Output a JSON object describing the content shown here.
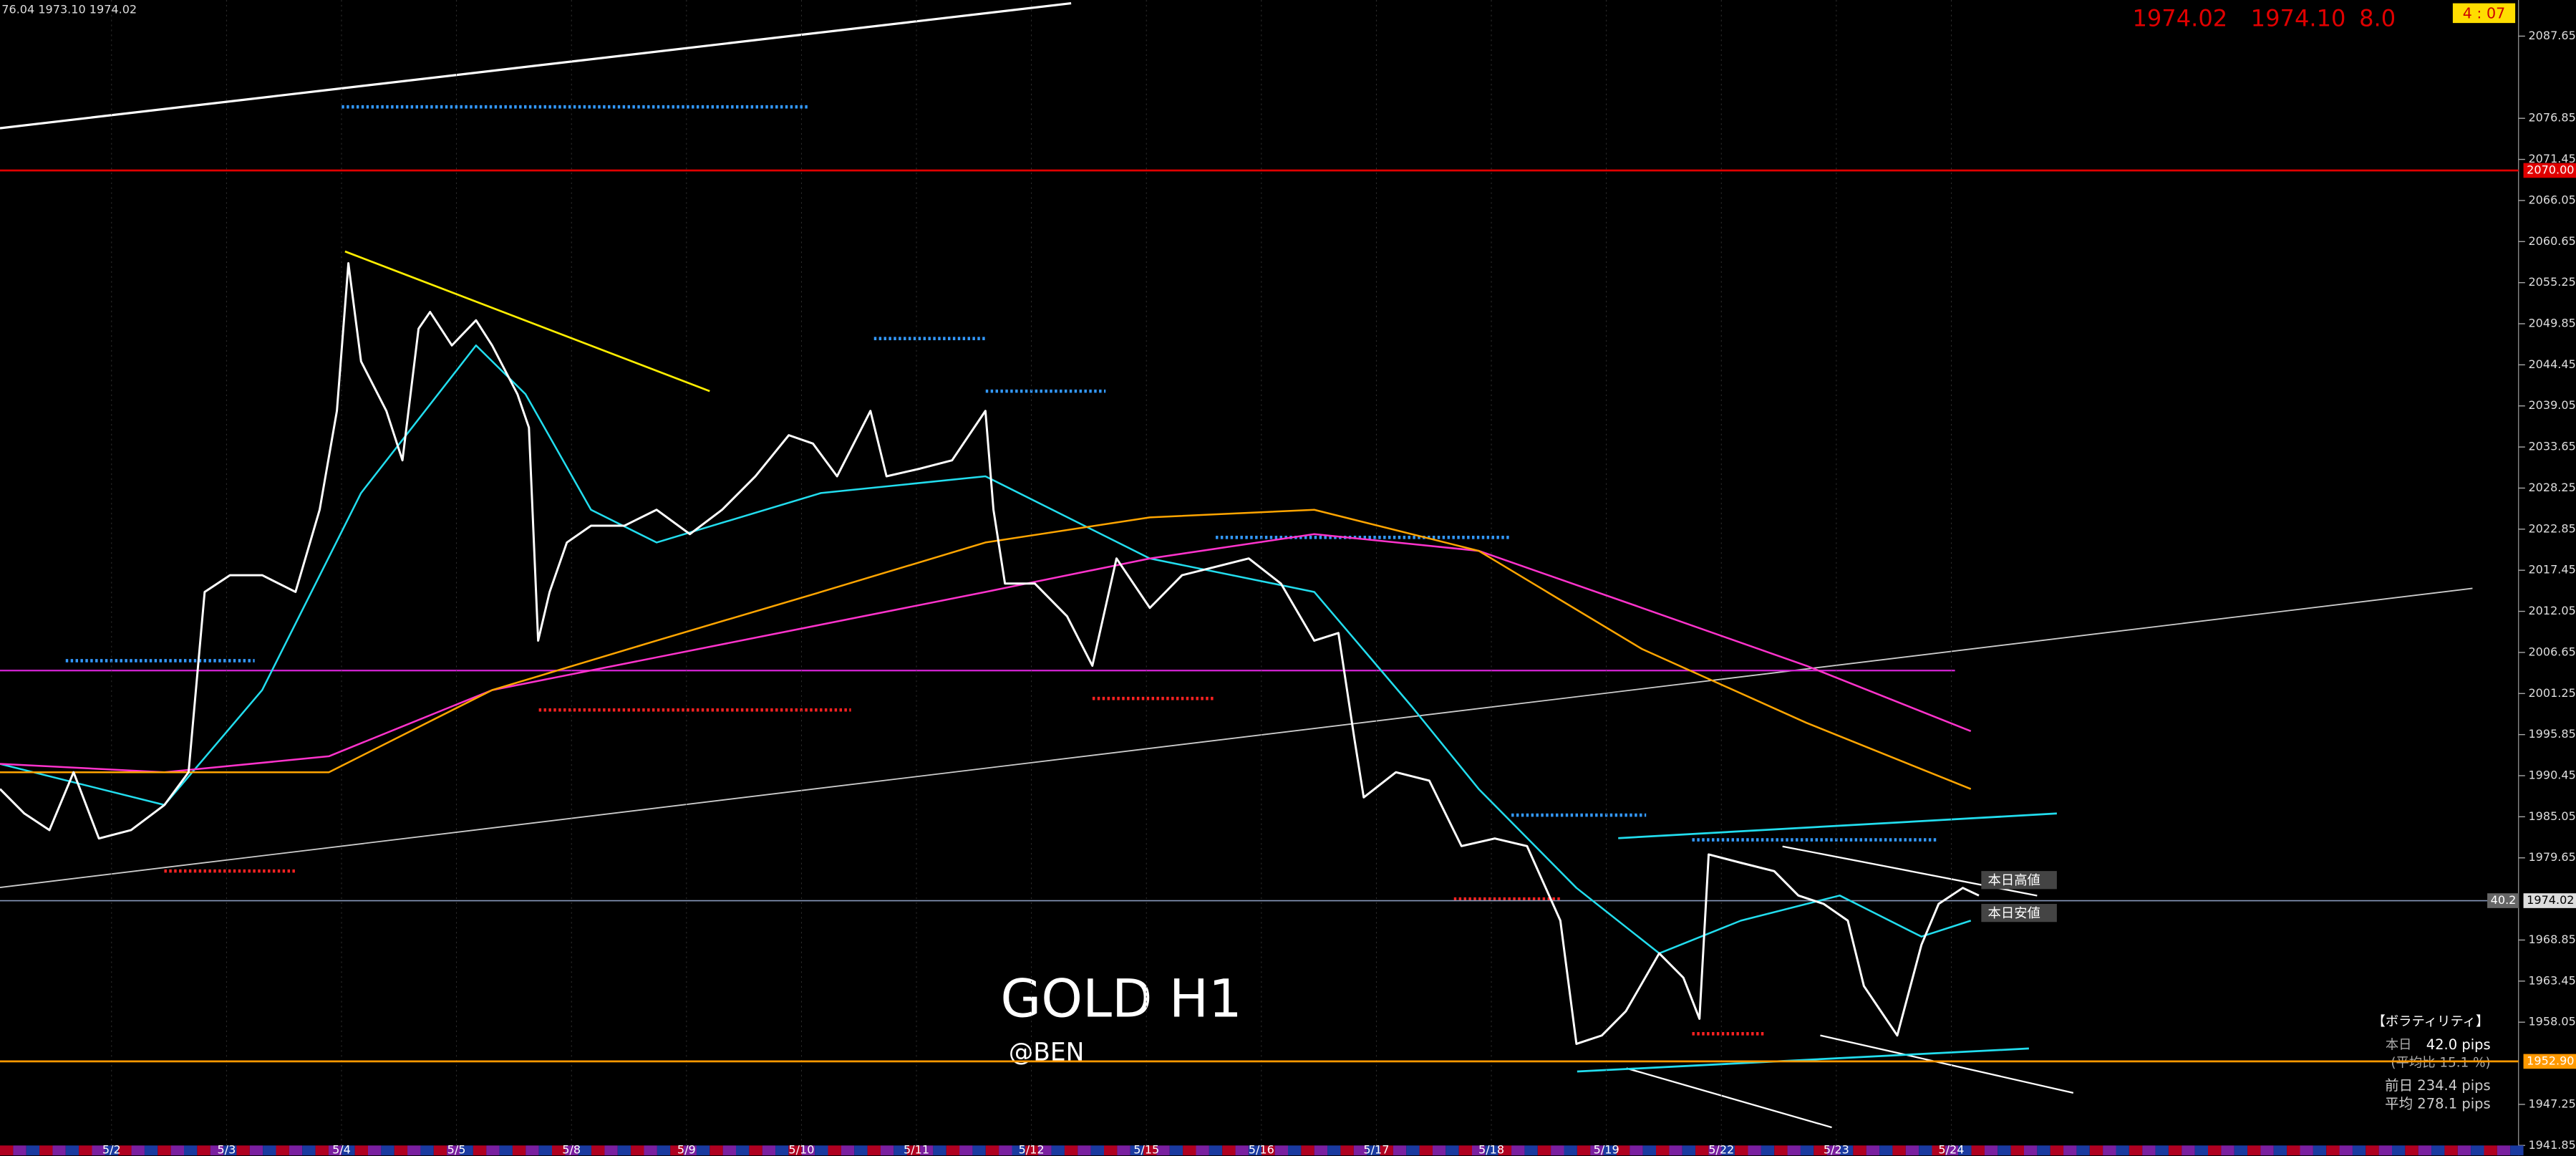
{
  "chart_data": {
    "type": "line",
    "title": "GOLD H1",
    "subtitle": "@BEN",
    "header": {
      "left": "76.04 1973.10 1974.02",
      "bid": "1974.02",
      "ask": "1974.10",
      "spread": "8.0",
      "timer": "4 : 07"
    },
    "categories": [
      "5/2",
      "5/3",
      "5/4",
      "5/5",
      "5/8",
      "5/9",
      "5/10",
      "5/11",
      "5/12",
      "5/15",
      "5/16",
      "5/17",
      "5/18",
      "5/19",
      "5/22",
      "5/23",
      "5/24"
    ],
    "xlim": [
      -0.97,
      20.89
    ],
    "ylim": [
      1940.55,
      2092.4
    ],
    "yticks": [
      2087.65,
      2076.85,
      2071.45,
      2066.05,
      2060.65,
      2055.25,
      2049.85,
      2044.45,
      2039.05,
      2033.65,
      2028.25,
      2022.85,
      2017.45,
      2012.05,
      2006.65,
      2001.25,
      1995.85,
      1990.45,
      1985.05,
      1979.65,
      1968.85,
      1963.45,
      1958.05,
      1947.25,
      1941.85
    ],
    "series": [
      {
        "color": "#ffffff",
        "x": [
          -0.97,
          -0.76,
          -0.54,
          -0.33,
          -0.11,
          0.17,
          0.46,
          0.67,
          0.81,
          1.03,
          1.31,
          1.6,
          1.81,
          1.96,
          2.06,
          2.17,
          2.39,
          2.53,
          2.67,
          2.77,
          2.96,
          3.17,
          3.31,
          3.53,
          3.63,
          3.71,
          3.81,
          3.96,
          4.17,
          4.46,
          4.74,
          5.03,
          5.31,
          5.6,
          5.89,
          6.1,
          6.31,
          6.6,
          6.74,
          7.03,
          7.31,
          7.6,
          7.67,
          7.77,
          8.03,
          8.31,
          8.53,
          8.74,
          9.03,
          9.31,
          9.6,
          9.89,
          10.17,
          10.46,
          10.67,
          10.81,
          10.89,
          11.17,
          11.46,
          11.74,
          12.03,
          12.31,
          12.6,
          12.74,
          12.96,
          13.17,
          13.46,
          13.67,
          13.81,
          13.89,
          14.17,
          14.46,
          14.67,
          14.89,
          15.1,
          15.24,
          15.53,
          15.74,
          15.89,
          16.1,
          16.24
        ],
        "values": [
          1988.7,
          1985.5,
          1983.3,
          1990.9,
          1982.2,
          1983.3,
          1986.6,
          1990.9,
          2014.6,
          2016.8,
          2016.8,
          2014.6,
          2025.4,
          2038.4,
          2057.8,
          2044.9,
          2038.4,
          2031.9,
          2049.2,
          2051.4,
          2047.0,
          2050.3,
          2047.0,
          2040.6,
          2036.2,
          2008.2,
          2014.6,
          2021.1,
          2023.3,
          2023.3,
          2025.4,
          2022.2,
          2025.4,
          2029.8,
          2035.2,
          2034.1,
          2029.8,
          2038.4,
          2029.8,
          2030.8,
          2031.9,
          2038.4,
          2025.4,
          2015.7,
          2015.7,
          2011.4,
          2004.9,
          2019.0,
          2012.5,
          2016.8,
          2017.9,
          2019.0,
          2015.7,
          2008.2,
          2009.2,
          1995.2,
          1987.6,
          1990.9,
          1989.8,
          1981.2,
          1982.2,
          1981.2,
          1971.4,
          1955.2,
          1956.3,
          1959.5,
          1967.1,
          1963.9,
          1958.5,
          1980.1,
          1979.0,
          1977.9,
          1974.7,
          1973.6,
          1971.4,
          1962.8,
          1956.3,
          1968.2,
          1973.6,
          1975.7,
          1974.7
        ]
      },
      {
        "color": "#ffa500",
        "x": [
          -0.97,
          0.46,
          1.89,
          3.31,
          4.74,
          6.17,
          7.6,
          9.03,
          10.46,
          11.89,
          13.31,
          14.74,
          16.17
        ],
        "values": [
          1990.9,
          1990.9,
          1990.9,
          2001.7,
          2008.2,
          2014.6,
          2021.1,
          2024.4,
          2025.4,
          2020.0,
          2007.1,
          1997.4,
          1988.7
        ]
      },
      {
        "color": "#ff33cc",
        "x": [
          -0.97,
          0.46,
          1.89,
          3.31,
          4.74,
          6.17,
          7.6,
          9.03,
          10.46,
          11.89,
          13.31,
          14.74,
          16.17
        ],
        "values": [
          1992.0,
          1990.9,
          1993.0,
          2001.7,
          2006.0,
          2010.3,
          2014.6,
          2019.0,
          2022.2,
          2020.0,
          2012.5,
          2004.9,
          1996.3
        ]
      },
      {
        "color": "#22ddee",
        "x": [
          -0.97,
          0.46,
          1.31,
          2.17,
          3.17,
          3.6,
          4.17,
          4.74,
          6.17,
          7.6,
          9.03,
          10.46,
          11.31,
          11.89,
          12.74,
          13.46,
          14.17,
          15.03,
          15.74,
          16.17
        ],
        "values": [
          1992.0,
          1986.6,
          2001.7,
          2027.6,
          2047.0,
          2040.6,
          2025.4,
          2021.1,
          2027.6,
          2029.8,
          2019.0,
          2014.6,
          1999.5,
          1988.7,
          1975.7,
          1967.1,
          1971.4,
          1974.7,
          1969.3,
          1971.4
        ]
      }
    ],
    "levels": [
      {
        "value": 2070.0,
        "label": "2070.00",
        "color": "#e00000"
      },
      {
        "value": 1952.9,
        "label": "1952.90",
        "color": "#ff9900"
      },
      {
        "value": 1974.02,
        "label": "1974.02",
        "color": "#8899bb"
      }
    ],
    "spread_label": "40.2",
    "annotations": [
      "本日高値",
      "本日安値"
    ],
    "volatility": {
      "title": "【ボラティリティ】",
      "today": "本日",
      "today_value": "42.0 pips",
      "ratio": "(平均比 15.1 %)",
      "prev": "前日 234.4 pips",
      "avg": "平均 278.1 pips"
    }
  }
}
